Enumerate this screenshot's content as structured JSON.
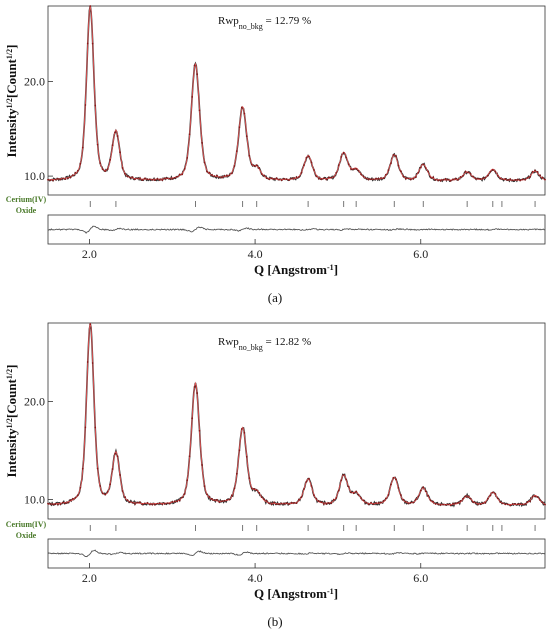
{
  "chart_data": [
    {
      "type": "line",
      "panel_label": "(a)",
      "annotation": "Rwp",
      "annotation_sub": "no_bkg",
      "annotation_value": " = 12.79 %",
      "ylabel": "Intensity",
      "ylabel_sup1": "1/2",
      "ylabel_mid": "[Count",
      "ylabel_sup2": "1/2",
      "ylabel_end": "]",
      "xlabel": "Q [Angstrom",
      "xlabel_sup": "-1",
      "xlabel_end": "]",
      "xlim": [
        1.5,
        7.5
      ],
      "ylim": [
        8.0,
        28.0
      ],
      "xticks": [
        "2.0",
        "4.0",
        "6.0"
      ],
      "xtick_values": [
        2.0,
        4.0,
        6.0
      ],
      "yticks": [
        "10.0",
        "20.0"
      ],
      "ytick_values": [
        10.0,
        20.0
      ],
      "phase_label_1": "Cerium(IV)",
      "phase_label_2": "Oxide",
      "background": 9.5,
      "peaks": [
        {
          "q": 2.01,
          "height": 18.4,
          "width": 0.045
        },
        {
          "q": 2.32,
          "height": 5.1,
          "width": 0.045
        },
        {
          "q": 3.28,
          "height": 12.3,
          "width": 0.05
        },
        {
          "q": 3.85,
          "height": 7.7,
          "width": 0.05
        },
        {
          "q": 4.02,
          "height": 1.1,
          "width": 0.05
        },
        {
          "q": 4.64,
          "height": 2.6,
          "width": 0.05
        },
        {
          "q": 5.07,
          "height": 2.9,
          "width": 0.05
        },
        {
          "q": 5.22,
          "height": 1.1,
          "width": 0.05
        },
        {
          "q": 5.68,
          "height": 2.7,
          "width": 0.05
        },
        {
          "q": 6.03,
          "height": 1.7,
          "width": 0.05
        },
        {
          "q": 6.56,
          "height": 0.9,
          "width": 0.05
        },
        {
          "q": 6.87,
          "height": 1.2,
          "width": 0.05
        },
        {
          "q": 7.38,
          "height": 1.0,
          "width": 0.05
        }
      ],
      "reflection_markers": [
        2.01,
        2.32,
        3.28,
        3.85,
        4.02,
        4.64,
        5.07,
        5.22,
        5.68,
        6.03,
        6.56,
        6.87,
        6.98,
        7.38
      ],
      "series": [
        {
          "name": "observed",
          "color": "#333333"
        },
        {
          "name": "calculated",
          "color": "#e05252"
        },
        {
          "name": "difference",
          "color": "#555555"
        }
      ]
    },
    {
      "type": "line",
      "panel_label": "(b)",
      "annotation": "Rwp",
      "annotation_sub": "no_bkg",
      "annotation_value": " = 12.82 %",
      "ylabel": "Intensity",
      "ylabel_sup1": "1/2",
      "ylabel_mid": "[Count",
      "ylabel_sup2": "1/2",
      "ylabel_end": "]",
      "xlabel": "Q [Angstrom",
      "xlabel_sup": "-1",
      "xlabel_end": "]",
      "xlim": [
        1.5,
        7.5
      ],
      "ylim": [
        8.0,
        28.0
      ],
      "xticks": [
        "2.0",
        "4.0",
        "6.0"
      ],
      "xtick_values": [
        2.0,
        4.0,
        6.0
      ],
      "yticks": [
        "10.0",
        "20.0"
      ],
      "ytick_values": [
        10.0,
        20.0
      ],
      "phase_label_1": "Cerium(IV)",
      "phase_label_2": "Oxide",
      "background": 9.4,
      "peaks": [
        {
          "q": 2.01,
          "height": 18.5,
          "width": 0.045
        },
        {
          "q": 2.32,
          "height": 5.2,
          "width": 0.045
        },
        {
          "q": 3.28,
          "height": 12.4,
          "width": 0.05
        },
        {
          "q": 3.85,
          "height": 7.8,
          "width": 0.05
        },
        {
          "q": 4.02,
          "height": 1.1,
          "width": 0.05
        },
        {
          "q": 4.64,
          "height": 2.6,
          "width": 0.05
        },
        {
          "q": 5.07,
          "height": 3.0,
          "width": 0.05
        },
        {
          "q": 5.22,
          "height": 1.1,
          "width": 0.05
        },
        {
          "q": 5.68,
          "height": 2.8,
          "width": 0.05
        },
        {
          "q": 6.03,
          "height": 1.7,
          "width": 0.05
        },
        {
          "q": 6.56,
          "height": 0.9,
          "width": 0.05
        },
        {
          "q": 6.87,
          "height": 1.3,
          "width": 0.05
        },
        {
          "q": 7.38,
          "height": 1.0,
          "width": 0.05
        }
      ],
      "reflection_markers": [
        2.01,
        2.32,
        3.28,
        3.85,
        4.02,
        4.64,
        5.07,
        5.22,
        5.68,
        6.03,
        6.56,
        6.87,
        6.98,
        7.38
      ],
      "series": [
        {
          "name": "observed",
          "color": "#333333"
        },
        {
          "name": "calculated",
          "color": "#e05252"
        },
        {
          "name": "difference",
          "color": "#555555"
        }
      ]
    }
  ]
}
